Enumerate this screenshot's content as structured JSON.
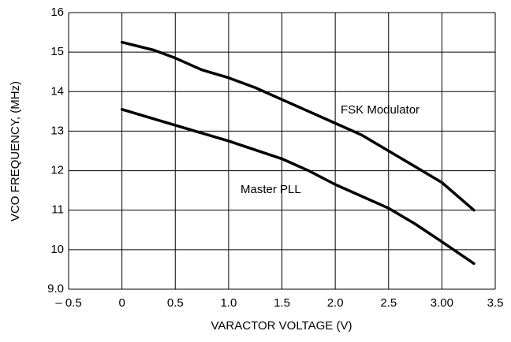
{
  "chart_data": {
    "type": "line",
    "x_label": "VARACTOR VOLTAGE (V)",
    "y_label": "VCO FREQUENCY, (MHz)",
    "xlim": [
      -0.5,
      3.5
    ],
    "ylim": [
      9,
      16
    ],
    "xticks": [
      {
        "value": -0.5,
        "label": "– 0.5"
      },
      0,
      0.5,
      {
        "value": 1,
        "label": "1.0"
      },
      1.5,
      {
        "value": 2,
        "label": "2.0"
      },
      2.5,
      {
        "value": 3,
        "label": "3.00"
      },
      3.5
    ],
    "yticks": [
      {
        "value": 9,
        "label": "9.0"
      },
      10,
      11,
      12,
      13,
      14,
      15,
      16
    ],
    "grid": true,
    "series": [
      {
        "name": "FSK Modulator",
        "color": "#000000",
        "x": [
          0,
          0.3,
          0.5,
          0.75,
          1.0,
          1.25,
          1.5,
          2.0,
          2.25,
          2.5,
          2.75,
          3.0,
          3.3
        ],
        "values": [
          15.25,
          15.05,
          14.85,
          14.55,
          14.35,
          14.1,
          13.8,
          13.2,
          12.9,
          12.5,
          12.1,
          11.7,
          11.0
        ]
      },
      {
        "name": "Master PLL",
        "color": "#000000",
        "x": [
          0,
          0.5,
          1.0,
          1.5,
          1.75,
          2.0,
          2.5,
          2.75,
          3.0,
          3.3
        ],
        "values": [
          13.55,
          13.15,
          12.75,
          12.3,
          12.0,
          11.65,
          11.05,
          10.65,
          10.2,
          9.65
        ]
      }
    ]
  }
}
